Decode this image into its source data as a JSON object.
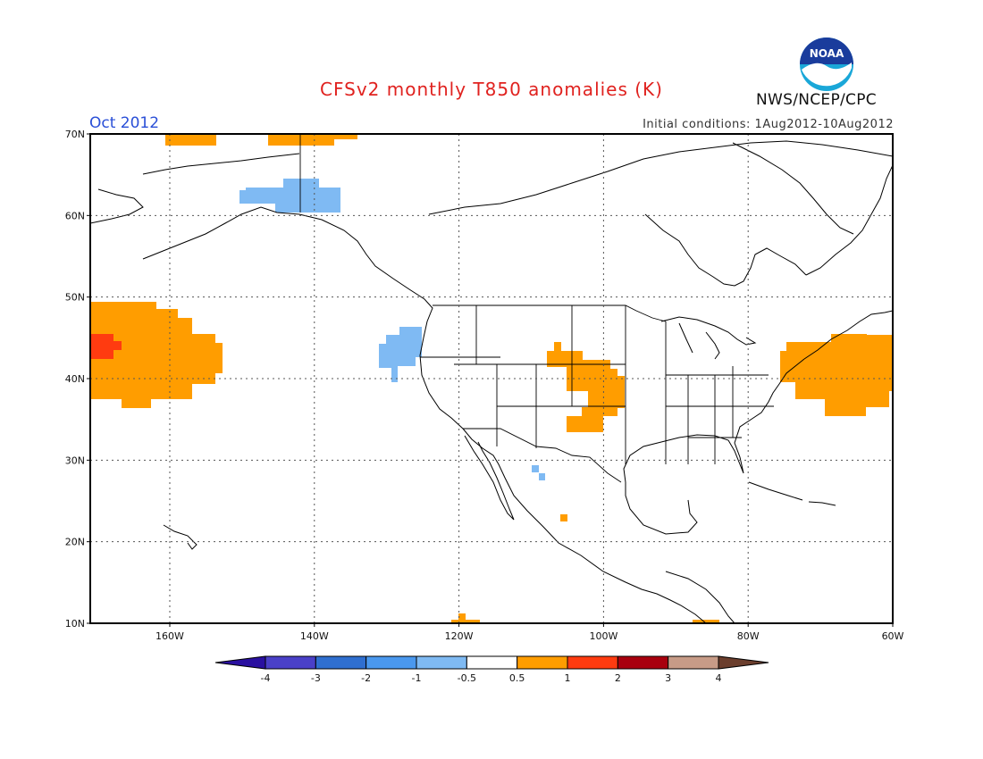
{
  "header": {
    "title": "CFSv2 monthly T850 anomalies (K)",
    "month": "Oct 2012",
    "initial_conditions": "Initial conditions: 1Aug2012-10Aug2012",
    "agency": "NWS/NCEP/CPC",
    "logo_text": "NOAA"
  },
  "map": {
    "lon_range": [
      -171,
      -60
    ],
    "lat_range": [
      10,
      70
    ],
    "lat_labels": [
      "10N",
      "20N",
      "30N",
      "40N",
      "50N",
      "60N",
      "70N"
    ],
    "lat_values": [
      10,
      20,
      30,
      40,
      50,
      60,
      70
    ],
    "lon_labels": [
      "160W",
      "140W",
      "120W",
      "100W",
      "80W",
      "60W"
    ],
    "lon_values": [
      -160,
      -140,
      -120,
      -100,
      -80,
      -60
    ],
    "gridlines": "dotted"
  },
  "colorbar": {
    "labels": [
      "-4",
      "-3",
      "-2",
      "-1",
      "-0.5",
      "0.5",
      "1",
      "2",
      "3",
      "4"
    ],
    "colors": [
      "#2a10a0",
      "#4a40c8",
      "#2f6fd0",
      "#4a98ee",
      "#7fbaf3",
      "#ffffff",
      "#ff9d00",
      "#ff3b10",
      "#a8000e",
      "#c79b87",
      "#6b3e2d"
    ]
  },
  "colors": {
    "warm_1": "#ff9d00",
    "warm_2": "#ff3b10",
    "cool_1": "#7fbaf3"
  }
}
